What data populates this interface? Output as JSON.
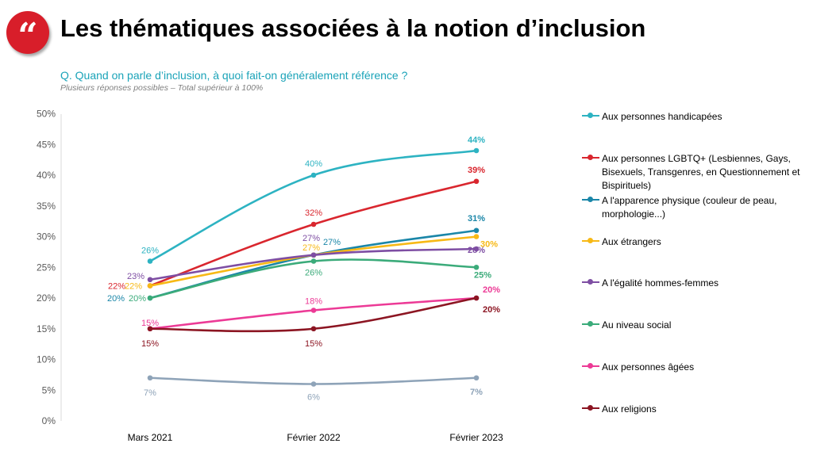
{
  "header": {
    "logo_glyph": "“",
    "title": "Les thématiques associées à la notion d’inclusion",
    "question": "Q. Quand on parle d’inclusion, à quoi fait-on généralement référence ?",
    "note": "Plusieurs réponses possibles – Total supérieur à 100%"
  },
  "chart_data": {
    "type": "line",
    "categories": [
      "Mars 2021",
      "Février 2022",
      "Février 2023"
    ],
    "y_ticks": [
      "0%",
      "5%",
      "10%",
      "15%",
      "20%",
      "25%",
      "30%",
      "35%",
      "40%",
      "45%",
      "50%"
    ],
    "ylim": [
      0,
      50
    ],
    "grid": false,
    "legend_position": "right",
    "series": [
      {
        "name": "Aux personnes handicapées",
        "color": "#2db3c2",
        "values": [
          26,
          40,
          44
        ],
        "labels": [
          "26%",
          "40%",
          "44%"
        ]
      },
      {
        "name": "Aux personnes LGBTQ+ (Lesbiennes, Gays, Bisexuels, Transgenres, en Questionnement et Bispirituels)",
        "color": "#d9262e",
        "values": [
          22,
          32,
          39
        ],
        "labels": [
          "22%",
          "32%",
          "39%"
        ]
      },
      {
        "name": "A l'apparence physique (couleur de peau, morphologie...)",
        "color": "#1a86a8",
        "values": [
          20,
          27,
          31
        ],
        "labels": [
          "20%",
          "27%",
          "31%"
        ]
      },
      {
        "name": "Aux étrangers",
        "color": "#f7b916",
        "values": [
          22,
          27,
          30
        ],
        "labels": [
          "22%",
          "27%",
          "30%"
        ]
      },
      {
        "name": "A l'égalité hommes-femmes",
        "color": "#7e4ea3",
        "values": [
          23,
          27,
          28
        ],
        "labels": [
          "23%",
          "27%",
          "28%"
        ]
      },
      {
        "name": "Au niveau social",
        "color": "#3bab7a",
        "values": [
          20,
          26,
          25
        ],
        "labels": [
          "20%",
          "26%",
          "25%"
        ]
      },
      {
        "name": "Aux personnes âgées",
        "color": "#ec3a96",
        "values": [
          15,
          18,
          20
        ],
        "labels": [
          "15%",
          "18%",
          "20%"
        ]
      },
      {
        "name": "Aux religions",
        "color": "#8c1522",
        "values": [
          15,
          15,
          20
        ],
        "labels": [
          "15%",
          "15%",
          "20%"
        ]
      },
      {
        "name": "",
        "color": "#8ea3b8",
        "values": [
          7,
          6,
          7
        ],
        "labels": [
          "7%",
          "6%",
          "7%"
        ]
      }
    ]
  }
}
